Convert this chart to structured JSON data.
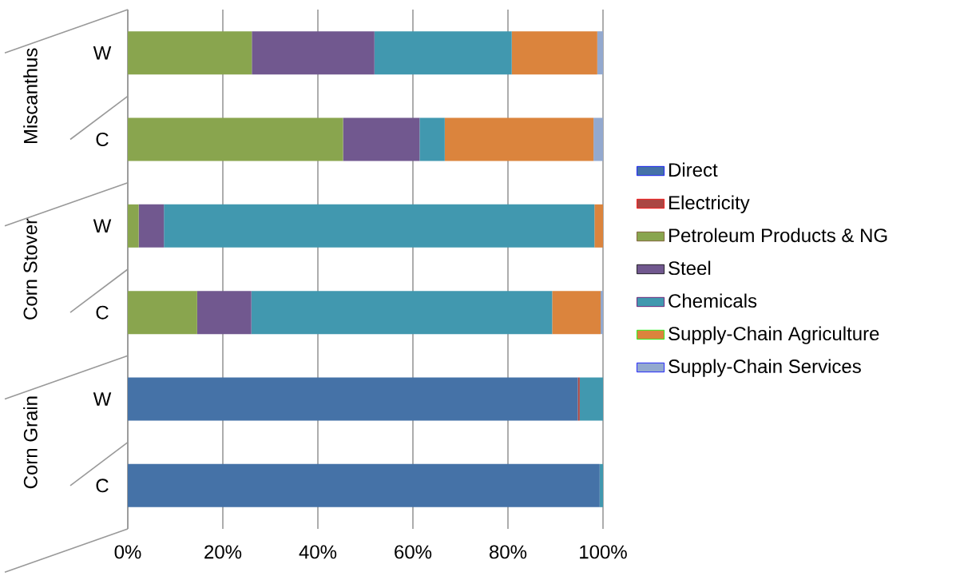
{
  "chart_data": {
    "type": "bar",
    "orientation": "horizontal",
    "stacked": true,
    "categories": [
      "W",
      "C",
      "W",
      "C",
      "W",
      "C"
    ],
    "annotations": [
      "Miscanthus",
      "Corn Stover",
      "Corn Grain"
    ],
    "series": [
      {
        "name": "Direct",
        "color": "#4572a7",
        "values": [
          0,
          0,
          0,
          0,
          94.7,
          99.3
        ]
      },
      {
        "name": "Electricity",
        "color": "#aa4643",
        "values": [
          0,
          0,
          0,
          0,
          0.4,
          0
        ]
      },
      {
        "name": "Petroleum Products & NG",
        "color": "#89a54e",
        "values": [
          26.1,
          45.3,
          2.3,
          14.6,
          0,
          0
        ]
      },
      {
        "name": "Steel",
        "color": "#71588f",
        "values": [
          25.8,
          16.1,
          5.3,
          11.4,
          0,
          0
        ]
      },
      {
        "name": "Chemicals",
        "color": "#4198af",
        "values": [
          28.9,
          5.3,
          90.6,
          63.3,
          4.9,
          0.7
        ]
      },
      {
        "name": "Supply-Chain Agriculture",
        "color": "#db843d",
        "values": [
          18.0,
          31.3,
          1.8,
          10.2,
          0,
          0
        ]
      },
      {
        "name": "Supply-Chain Services",
        "color": "#93a9cf",
        "values": [
          1.2,
          2.0,
          0,
          0.5,
          0,
          0
        ]
      }
    ],
    "xlim": [
      0,
      100
    ],
    "xticks": [
      {
        "value": 0,
        "label": "0%"
      },
      {
        "value": 20,
        "label": "20%"
      },
      {
        "value": 40,
        "label": "40%"
      },
      {
        "value": 60,
        "label": "60%"
      },
      {
        "value": 80,
        "label": "80%"
      },
      {
        "value": 100,
        "label": "100%"
      }
    ],
    "grid": "x",
    "legend": "right"
  }
}
